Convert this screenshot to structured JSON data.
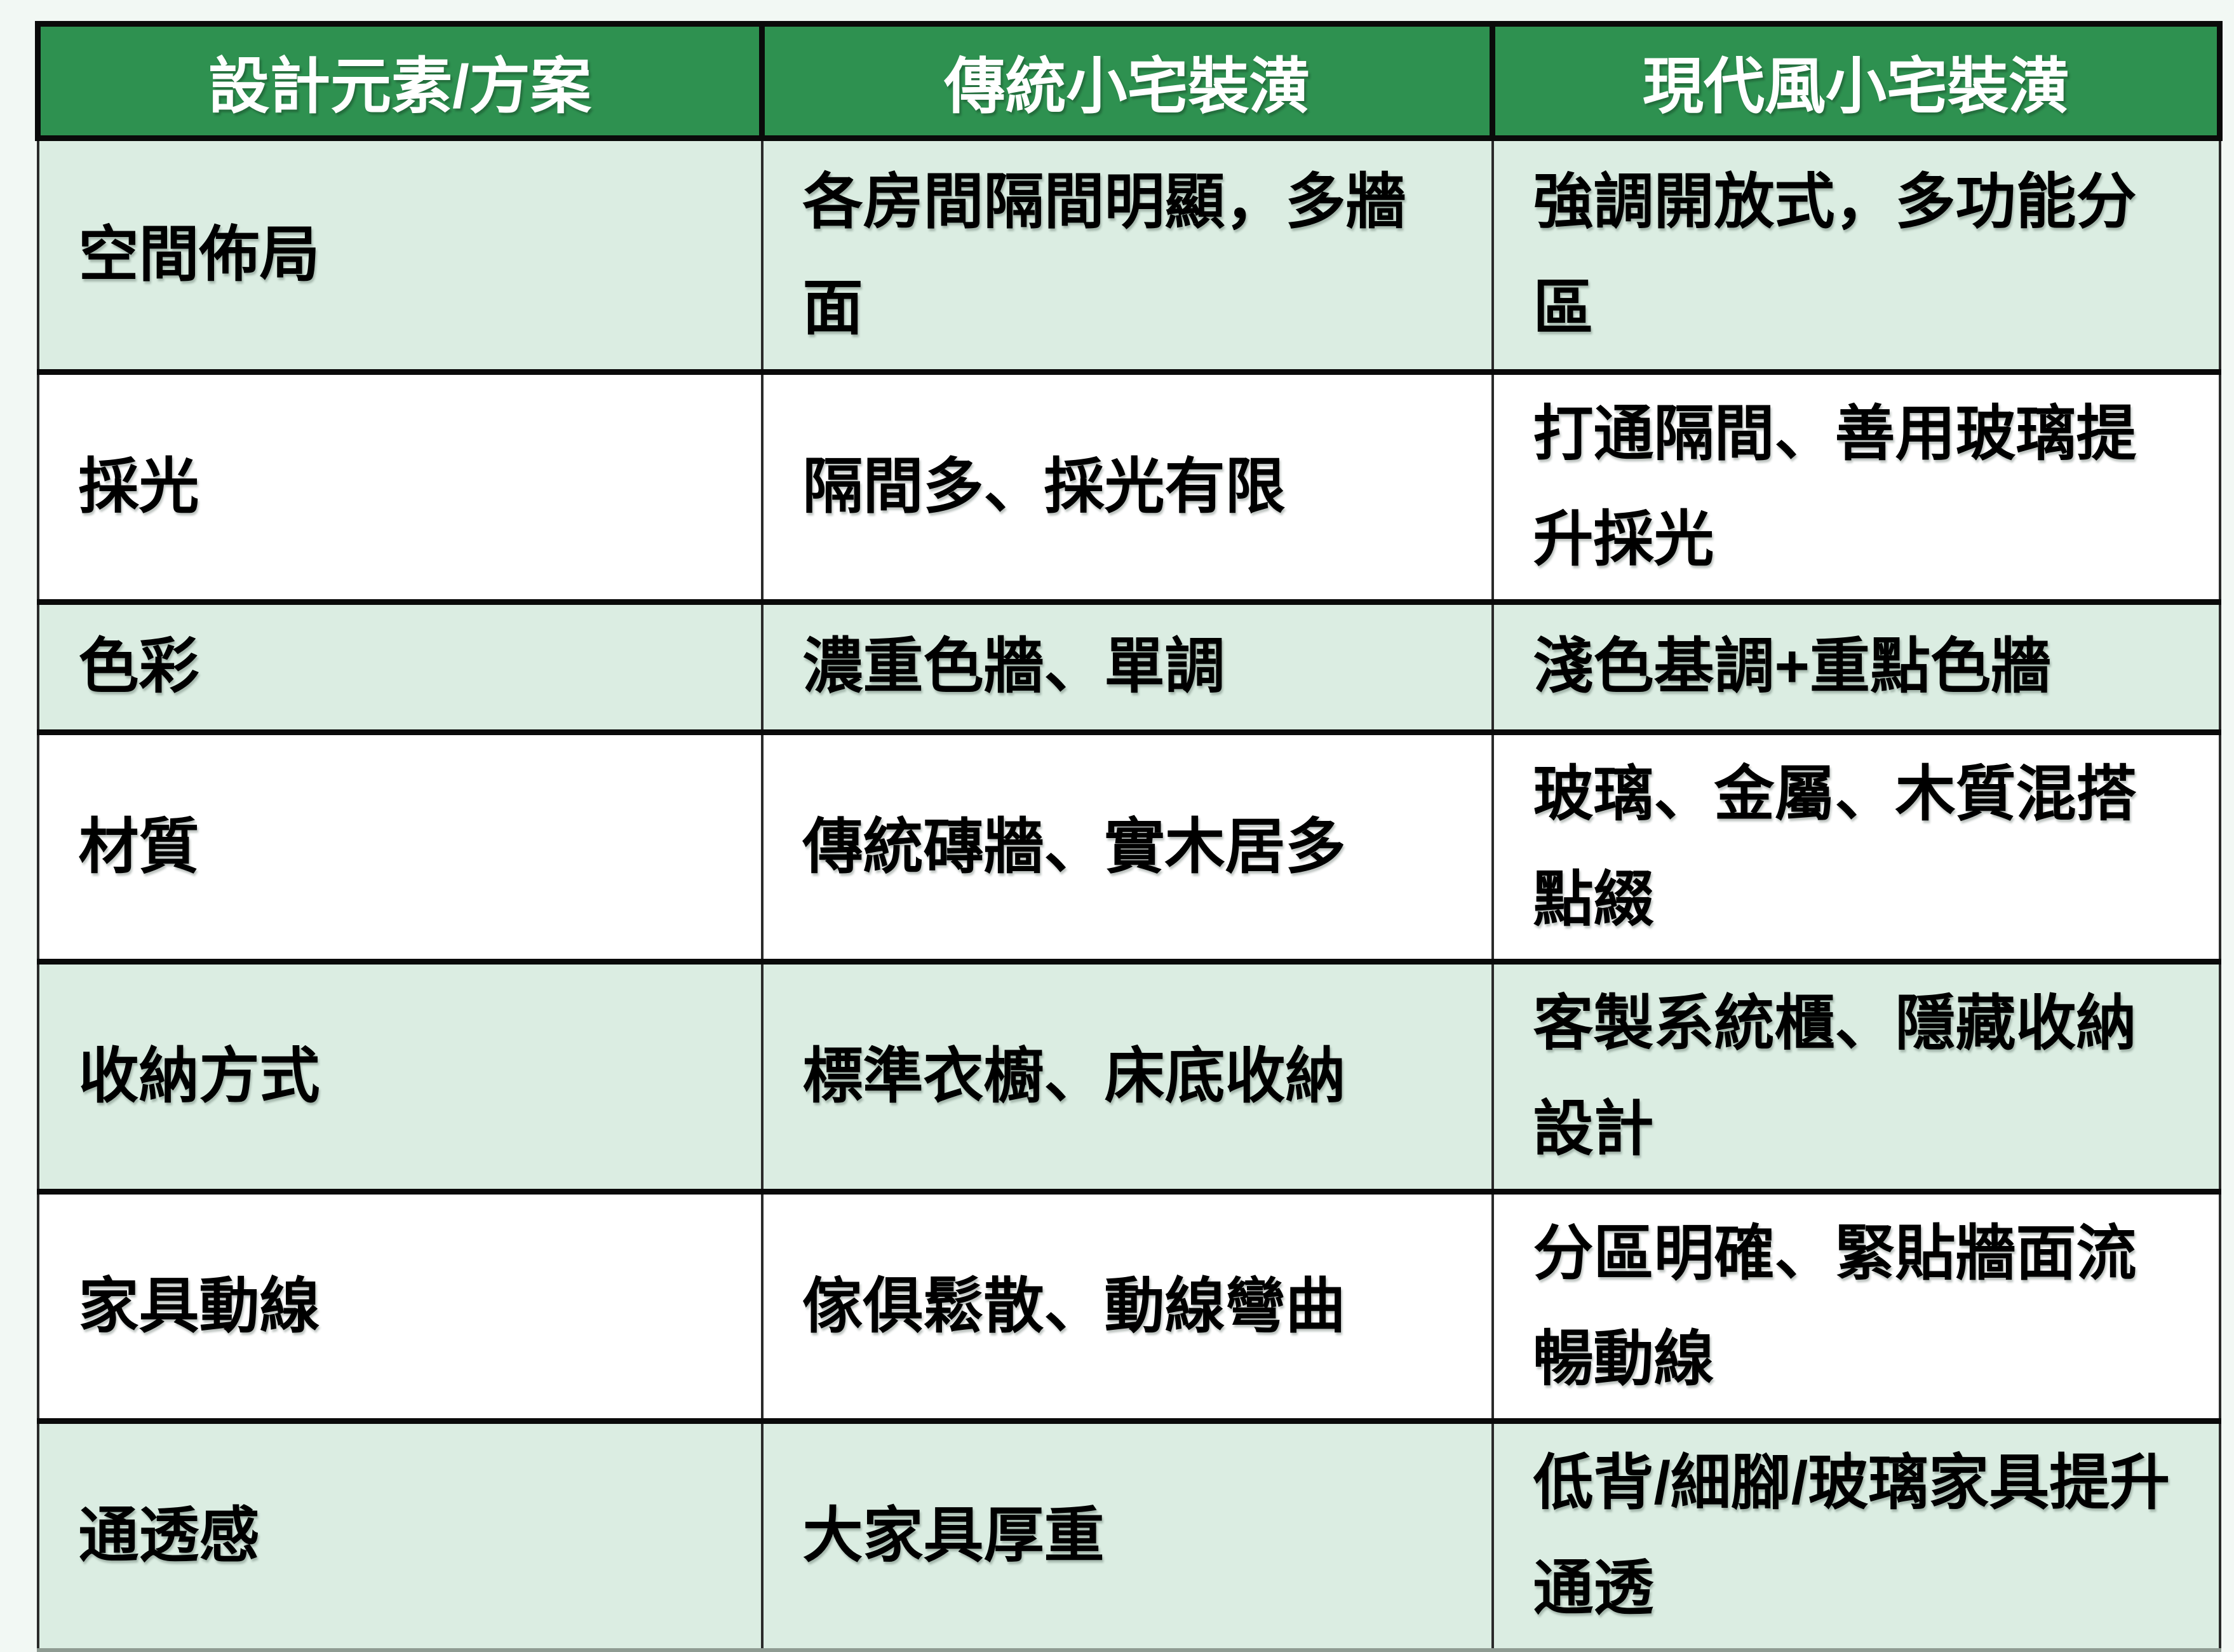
{
  "table": {
    "headers": [
      "設計元素/方案",
      "傳統小宅裝潢",
      "現代風小宅裝潢"
    ],
    "rows": [
      {
        "label": "空間佈局",
        "traditional": "各房間隔間明顯，多牆面",
        "modern": "強調開放式，多功能分區"
      },
      {
        "label": "採光",
        "traditional": "隔間多、採光有限",
        "modern": "打通隔間、善用玻璃提升採光"
      },
      {
        "label": "色彩",
        "traditional": "濃重色牆、單調",
        "modern": "淺色基調+重點色牆"
      },
      {
        "label": "材質",
        "traditional": "傳統磚牆、實木居多",
        "modern": "玻璃、金屬、木質混搭點綴"
      },
      {
        "label": "收納方式",
        "traditional": "標準衣櫥、床底收納",
        "modern": "客製系統櫃、隱藏收納設計"
      },
      {
        "label": "家具動線",
        "traditional": "傢俱鬆散、動線彎曲",
        "modern": "分區明確、緊貼牆面流暢動線"
      },
      {
        "label": "通透感",
        "traditional": "大家具厚重",
        "modern": "低背/細腳/玻璃家具提升通透"
      }
    ],
    "colors": {
      "header_bg": "#2E9150",
      "header_text": "#FFFFFF",
      "row_alt_bg": "#DBEDE2",
      "row_bg": "#FFFFFF",
      "page_bg": "#F2F8F4",
      "border": "#0A0A0A"
    }
  }
}
